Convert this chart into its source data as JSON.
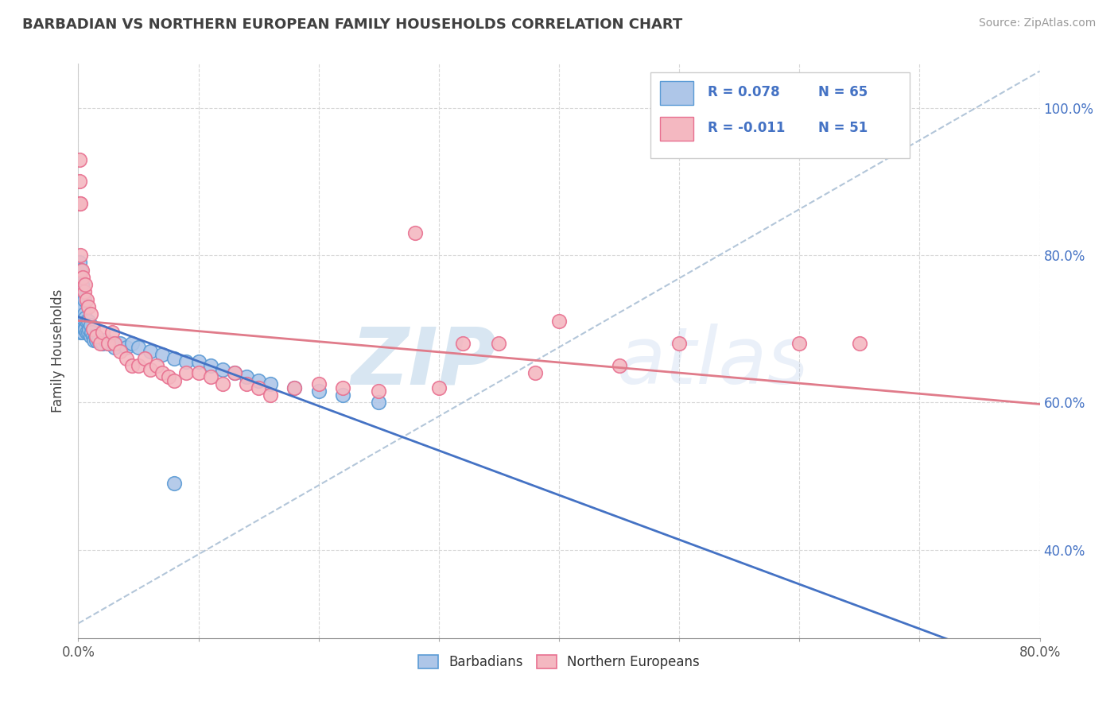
{
  "title": "BARBADIAN VS NORTHERN EUROPEAN FAMILY HOUSEHOLDS CORRELATION CHART",
  "source": "Source: ZipAtlas.com",
  "ylabel": "Family Households",
  "watermark_zip": "ZIP",
  "watermark_atlas": "atlas",
  "barbadian_color_fill": "#aec6e8",
  "barbadian_color_edge": "#5b9bd5",
  "northern_color_fill": "#f4b8c1",
  "northern_color_edge": "#e87090",
  "trend_blue_color": "#4472c4",
  "trend_pink_color": "#e07b8a",
  "diag_color": "#a0b8d0",
  "grid_color": "#d8d8d8",
  "background_color": "#ffffff",
  "title_color": "#404040",
  "source_color": "#999999",
  "ytick_color": "#4472c4",
  "xtick_color": "#555555",
  "R_blue": 0.078,
  "N_blue": 65,
  "R_pink": -0.011,
  "N_pink": 51,
  "xlim": [
    0.0,
    0.8
  ],
  "ylim": [
    0.28,
    1.06
  ],
  "x_tick_positions": [
    0.0,
    0.1,
    0.2,
    0.3,
    0.4,
    0.5,
    0.6,
    0.7,
    0.8
  ],
  "x_tick_labels": [
    "0.0%",
    "",
    "",
    "",
    "",
    "",
    "",
    "",
    "80.0%"
  ],
  "y_tick_positions": [
    0.4,
    0.6,
    0.8,
    1.0
  ],
  "y_tick_labels": [
    "40.0%",
    "60.0%",
    "80.0%",
    "100.0%"
  ],
  "legend_entries": [
    {
      "color": "#aec6e8",
      "border": "#5b9bd5",
      "R": "0.078",
      "N": "65"
    },
    {
      "color": "#f4b8c1",
      "border": "#e87090",
      "R": "-0.011",
      "N": "51"
    }
  ],
  "legend_labels_bottom": [
    "Barbadians",
    "Northern Europeans"
  ],
  "blue_x": [
    0.001,
    0.001,
    0.001,
    0.001,
    0.001,
    0.001,
    0.001,
    0.001,
    0.001,
    0.001,
    0.002,
    0.002,
    0.002,
    0.002,
    0.002,
    0.003,
    0.003,
    0.003,
    0.003,
    0.004,
    0.004,
    0.004,
    0.005,
    0.005,
    0.005,
    0.006,
    0.006,
    0.007,
    0.007,
    0.008,
    0.008,
    0.009,
    0.01,
    0.01,
    0.011,
    0.012,
    0.013,
    0.014,
    0.015,
    0.017,
    0.02,
    0.022,
    0.025,
    0.028,
    0.03,
    0.035,
    0.04,
    0.045,
    0.05,
    0.06,
    0.07,
    0.08,
    0.09,
    0.1,
    0.11,
    0.12,
    0.13,
    0.14,
    0.15,
    0.16,
    0.18,
    0.2,
    0.22,
    0.25,
    0.08
  ],
  "blue_y": [
    0.7,
    0.71,
    0.72,
    0.73,
    0.74,
    0.75,
    0.76,
    0.77,
    0.78,
    0.79,
    0.695,
    0.71,
    0.73,
    0.755,
    0.78,
    0.7,
    0.72,
    0.74,
    0.76,
    0.695,
    0.715,
    0.73,
    0.7,
    0.72,
    0.74,
    0.7,
    0.715,
    0.695,
    0.71,
    0.695,
    0.71,
    0.7,
    0.69,
    0.705,
    0.695,
    0.69,
    0.685,
    0.69,
    0.685,
    0.685,
    0.68,
    0.685,
    0.68,
    0.68,
    0.675,
    0.68,
    0.675,
    0.68,
    0.675,
    0.67,
    0.665,
    0.66,
    0.655,
    0.655,
    0.65,
    0.645,
    0.64,
    0.635,
    0.63,
    0.625,
    0.62,
    0.615,
    0.61,
    0.6,
    0.49
  ],
  "pink_x": [
    0.001,
    0.001,
    0.001,
    0.002,
    0.002,
    0.003,
    0.004,
    0.005,
    0.006,
    0.007,
    0.008,
    0.01,
    0.012,
    0.015,
    0.018,
    0.02,
    0.025,
    0.028,
    0.03,
    0.035,
    0.04,
    0.045,
    0.05,
    0.055,
    0.06,
    0.065,
    0.07,
    0.075,
    0.08,
    0.09,
    0.1,
    0.11,
    0.12,
    0.13,
    0.14,
    0.15,
    0.16,
    0.18,
    0.2,
    0.22,
    0.25,
    0.3,
    0.35,
    0.4,
    0.45,
    0.5,
    0.6,
    0.65,
    0.28,
    0.32,
    0.38
  ],
  "pink_y": [
    0.87,
    0.9,
    0.93,
    0.87,
    0.8,
    0.78,
    0.77,
    0.75,
    0.76,
    0.74,
    0.73,
    0.72,
    0.7,
    0.69,
    0.68,
    0.695,
    0.68,
    0.695,
    0.68,
    0.67,
    0.66,
    0.65,
    0.65,
    0.66,
    0.645,
    0.65,
    0.64,
    0.635,
    0.63,
    0.64,
    0.64,
    0.635,
    0.625,
    0.64,
    0.625,
    0.62,
    0.61,
    0.62,
    0.625,
    0.62,
    0.615,
    0.62,
    0.68,
    0.71,
    0.65,
    0.68,
    0.68,
    0.68,
    0.83,
    0.68,
    0.64
  ]
}
